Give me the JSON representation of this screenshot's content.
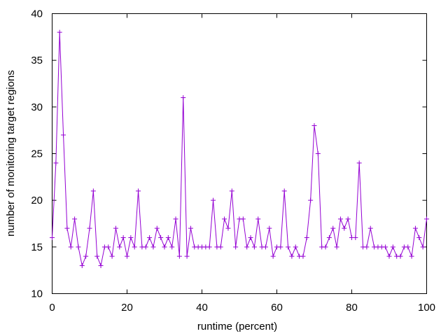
{
  "chart_data": {
    "type": "line",
    "title": "",
    "xlabel": "runtime (percent)",
    "ylabel": "number of monitoring target regions",
    "xlim": [
      0,
      100
    ],
    "ylim": [
      10,
      40
    ],
    "xticks": [
      "0",
      "20",
      "40",
      "60",
      "80",
      "100"
    ],
    "yticks": [
      "10",
      "15",
      "20",
      "25",
      "30",
      "35",
      "40"
    ],
    "grid": false,
    "legend": "none",
    "marker": "plus",
    "color": "#9400d3",
    "series": [
      {
        "x": [
          0,
          1,
          2,
          3,
          4,
          5,
          6,
          7,
          8,
          9,
          10,
          11,
          12,
          13,
          14,
          15,
          16,
          17,
          18,
          19,
          20,
          21,
          22,
          23,
          24,
          25,
          26,
          27,
          28,
          29,
          30,
          31,
          32,
          33,
          34,
          35,
          36,
          37,
          38,
          39,
          40,
          41,
          42,
          43,
          44,
          45,
          46,
          47,
          48,
          49,
          50,
          51,
          52,
          53,
          54,
          55,
          56,
          57,
          58,
          59,
          60,
          61,
          62,
          63,
          64,
          65,
          66,
          67,
          68,
          69,
          70,
          71,
          72,
          73,
          74,
          75,
          76,
          77,
          78,
          79,
          80,
          81,
          82,
          83,
          84,
          85,
          86,
          87,
          88,
          89,
          90,
          91,
          92,
          93,
          94,
          95,
          96,
          97,
          98,
          99,
          100
        ],
        "y": [
          16,
          24,
          38,
          27,
          17,
          15,
          18,
          15,
          13,
          14,
          17,
          21,
          14,
          13,
          15,
          15,
          14,
          17,
          15,
          16,
          14,
          16,
          15,
          21,
          15,
          15,
          16,
          15,
          17,
          16,
          15,
          16,
          15,
          18,
          14,
          31,
          14,
          17,
          15,
          15,
          15,
          15,
          15,
          20,
          15,
          15,
          18,
          17,
          21,
          15,
          18,
          18,
          15,
          16,
          15,
          18,
          15,
          15,
          17,
          14,
          15,
          15,
          21,
          15,
          14,
          15,
          14,
          14,
          16,
          20,
          28,
          25,
          15,
          15,
          16,
          17,
          15,
          18,
          17,
          18,
          16,
          16,
          24,
          15,
          15,
          17,
          15,
          15,
          15,
          15,
          14,
          15,
          14,
          14,
          15,
          15,
          14,
          17,
          16,
          15,
          18
        ]
      }
    ]
  }
}
